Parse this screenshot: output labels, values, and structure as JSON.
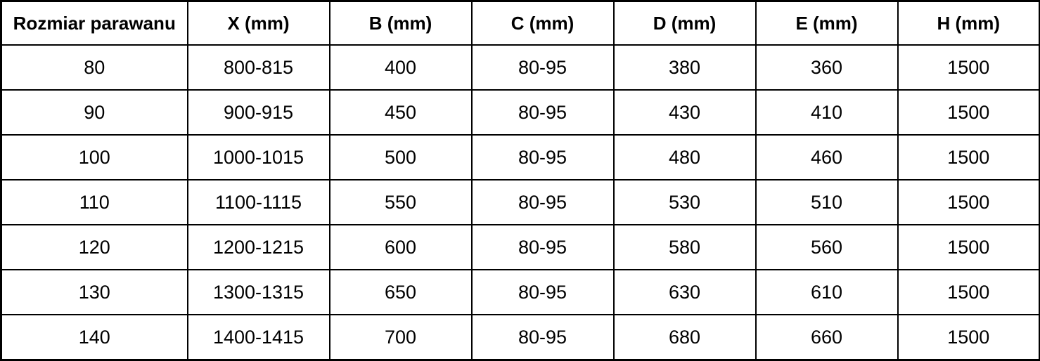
{
  "table": {
    "headers": [
      "Rozmiar parawanu",
      "X (mm)",
      "B (mm)",
      "C (mm)",
      "D (mm)",
      "E (mm)",
      "H (mm)"
    ],
    "rows": [
      [
        "80",
        "800-815",
        "400",
        "80-95",
        "380",
        "360",
        "1500"
      ],
      [
        "90",
        "900-915",
        "450",
        "80-95",
        "430",
        "410",
        "1500"
      ],
      [
        "100",
        "1000-1015",
        "500",
        "80-95",
        "480",
        "460",
        "1500"
      ],
      [
        "110",
        "1100-1115",
        "550",
        "80-95",
        "530",
        "510",
        "1500"
      ],
      [
        "120",
        "1200-1215",
        "600",
        "80-95",
        "580",
        "560",
        "1500"
      ],
      [
        "130",
        "1300-1315",
        "650",
        "80-95",
        "630",
        "610",
        "1500"
      ],
      [
        "140",
        "1400-1415",
        "700",
        "80-95",
        "680",
        "660",
        "1500"
      ]
    ]
  },
  "colors": {
    "border": "#000000",
    "text": "#000000",
    "background": "#ffffff"
  },
  "chart_data": {
    "type": "table",
    "columns": [
      "Rozmiar parawanu",
      "X (mm)",
      "B (mm)",
      "C (mm)",
      "D (mm)",
      "E (mm)",
      "H (mm)"
    ],
    "rows": [
      [
        "80",
        "800-815",
        "400",
        "80-95",
        "380",
        "360",
        "1500"
      ],
      [
        "90",
        "900-915",
        "450",
        "80-95",
        "430",
        "410",
        "1500"
      ],
      [
        "100",
        "1000-1015",
        "500",
        "80-95",
        "480",
        "460",
        "1500"
      ],
      [
        "110",
        "1100-1115",
        "550",
        "80-95",
        "530",
        "510",
        "1500"
      ],
      [
        "120",
        "1200-1215",
        "600",
        "80-95",
        "580",
        "560",
        "1500"
      ],
      [
        "130",
        "1300-1315",
        "650",
        "80-95",
        "630",
        "610",
        "1500"
      ],
      [
        "140",
        "1400-1415",
        "700",
        "80-95",
        "680",
        "660",
        "1500"
      ]
    ]
  }
}
